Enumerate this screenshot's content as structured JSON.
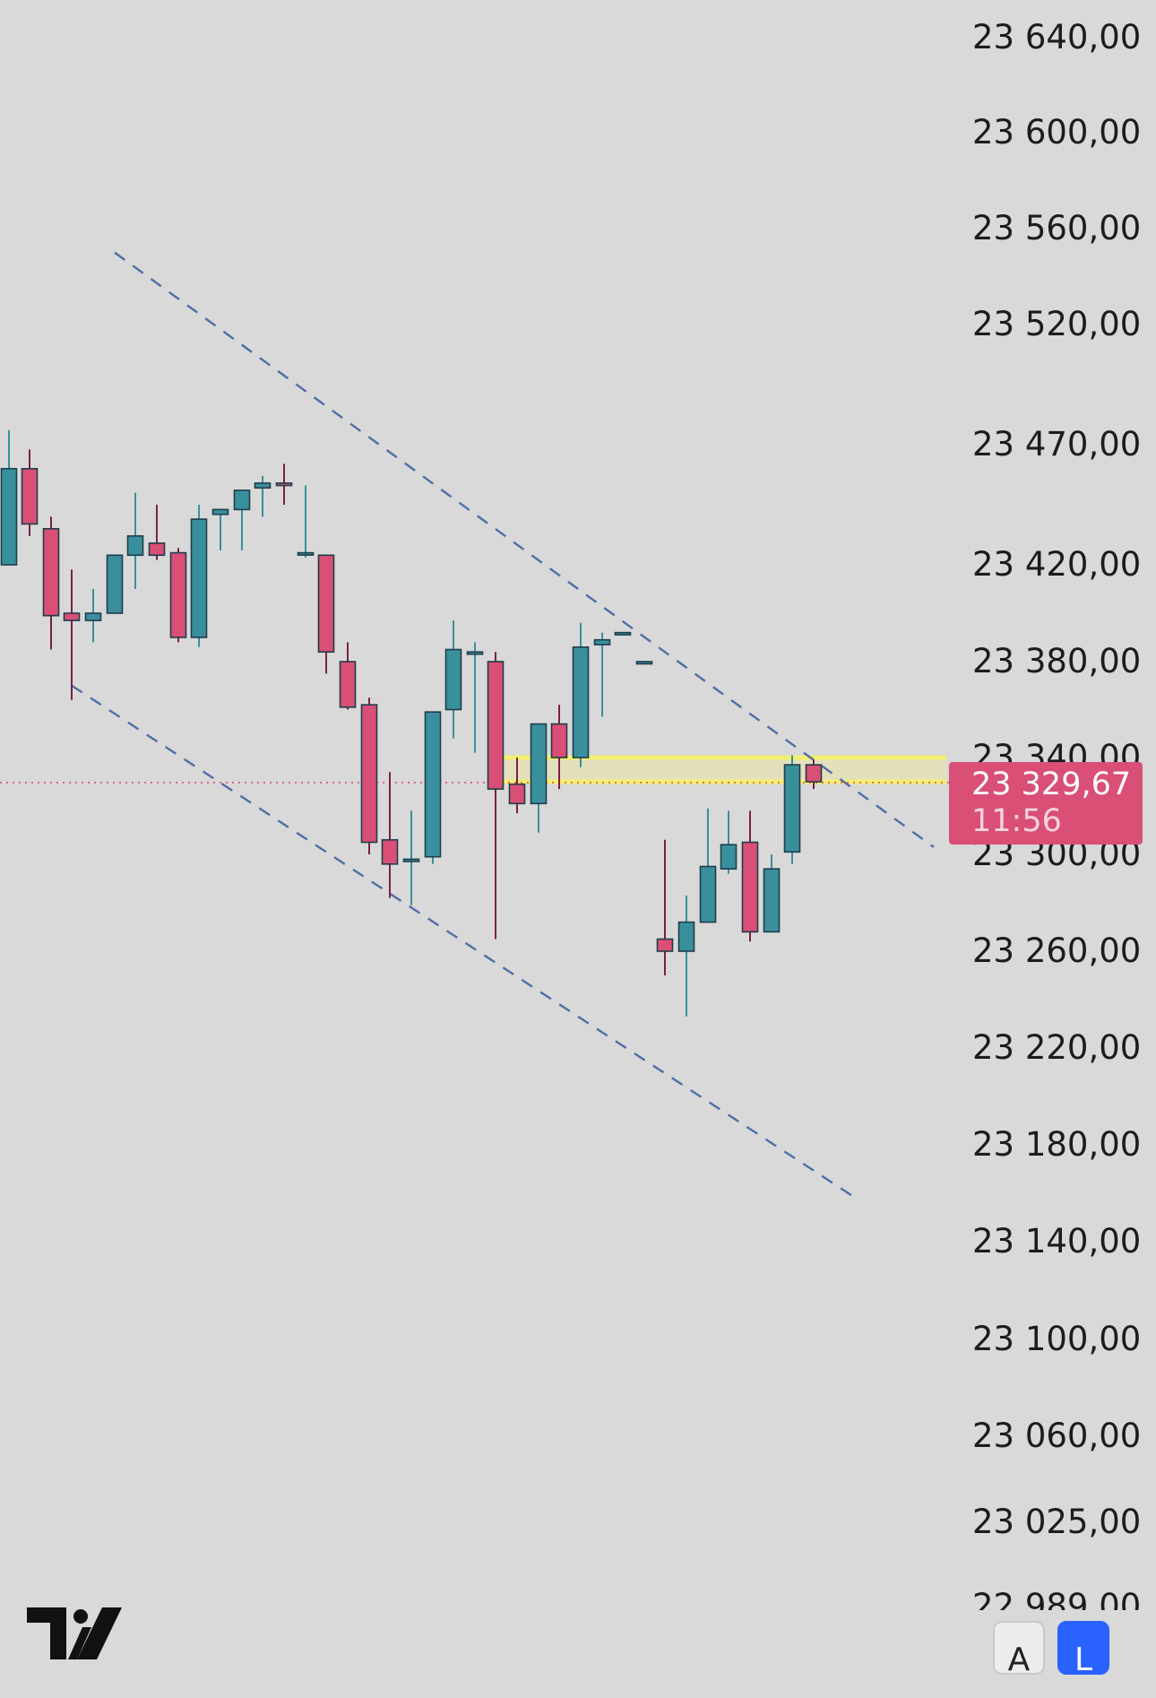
{
  "colors": {
    "background": "#d9d9d9",
    "bullish_body": "#3a8f9d",
    "bullish_wick": "#3a8f9d",
    "bearish_body": "#d94f76",
    "bearish_wick": "#7a1f45",
    "candle_outline": "#1f3d4a",
    "trend_line": "#4f6ea6",
    "zone_fill": "#e4e0b8",
    "zone_border": "#f4ef6e",
    "price_line": "#d94f76",
    "price_tag": "#d94f76",
    "logo": "#111111",
    "active_button": "#2962ff"
  },
  "price_axis": {
    "labels": [
      {
        "value": 23640,
        "text": "23 640,00"
      },
      {
        "value": 23600,
        "text": "23 600,00"
      },
      {
        "value": 23560,
        "text": "23 560,00"
      },
      {
        "value": 23520,
        "text": "23 520,00"
      },
      {
        "value": 23470,
        "text": "23 470,00"
      },
      {
        "value": 23420,
        "text": "23 420,00"
      },
      {
        "value": 23380,
        "text": "23 380,00"
      },
      {
        "value": 23340,
        "text": "23 340,00"
      },
      {
        "value": 23300,
        "text": "23 300,00"
      },
      {
        "value": 23260,
        "text": "23 260,00"
      },
      {
        "value": 23220,
        "text": "23 220,00"
      },
      {
        "value": 23180,
        "text": "23 180,00"
      },
      {
        "value": 23140,
        "text": "23 140,00"
      },
      {
        "value": 23100,
        "text": "23 100,00"
      },
      {
        "value": 23060,
        "text": "23 060,00"
      },
      {
        "value": 23025,
        "text": "23 025,00"
      },
      {
        "value": 22989,
        "text": "22 989,00"
      }
    ]
  },
  "current_price": {
    "value": 23329.67,
    "label": "23 329,67",
    "countdown": "11:56"
  },
  "buttons": {
    "auto_label": "A",
    "log_label": "L"
  },
  "chart_data": {
    "type": "candlestick",
    "title": "",
    "xlabel": "",
    "ylabel": "",
    "ylim": [
      22989,
      23655
    ],
    "candles": [
      {
        "open": 23420,
        "high": 23476,
        "low": 23420,
        "close": 23460
      },
      {
        "open": 23460,
        "high": 23468,
        "low": 23432,
        "close": 23437
      },
      {
        "open": 23435,
        "high": 23440,
        "low": 23385,
        "close": 23399
      },
      {
        "open": 23400,
        "high": 23418,
        "low": 23364,
        "close": 23397
      },
      {
        "open": 23397,
        "high": 23410,
        "low": 23388,
        "close": 23400
      },
      {
        "open": 23400,
        "high": 23418,
        "low": 23400,
        "close": 23424
      },
      {
        "open": 23424,
        "high": 23450,
        "low": 23410,
        "close": 23432
      },
      {
        "open": 23429,
        "high": 23445,
        "low": 23422,
        "close": 23424
      },
      {
        "open": 23425,
        "high": 23427,
        "low": 23388,
        "close": 23390
      },
      {
        "open": 23390,
        "high": 23445,
        "low": 23386,
        "close": 23439
      },
      {
        "open": 23441,
        "high": 23443,
        "low": 23426,
        "close": 23443
      },
      {
        "open": 23443,
        "high": 23445,
        "low": 23426,
        "close": 23451
      },
      {
        "open": 23452,
        "high": 23457,
        "low": 23440,
        "close": 23454
      },
      {
        "open": 23454,
        "high": 23462,
        "low": 23445,
        "close": 23453
      },
      {
        "open": 23425,
        "high": 23453,
        "low": 23423,
        "close": 23425
      },
      {
        "open": 23424,
        "high": 23420,
        "low": 23375,
        "close": 23384
      },
      {
        "open": 23380,
        "high": 23388,
        "low": 23360,
        "close": 23361
      },
      {
        "open": 23362,
        "high": 23365,
        "low": 23300,
        "close": 23305
      },
      {
        "open": 23306,
        "high": 23334,
        "low": 23282,
        "close": 23296
      },
      {
        "open": 23298,
        "high": 23318,
        "low": 23279,
        "close": 23298
      },
      {
        "open": 23299,
        "high": 23359,
        "low": 23296,
        "close": 23359
      },
      {
        "open": 23360,
        "high": 23397,
        "low": 23348,
        "close": 23385
      },
      {
        "open": 23384,
        "high": 23388,
        "low": 23342,
        "close": 23384
      },
      {
        "open": 23380,
        "high": 23384,
        "low": 23265,
        "close": 23327
      },
      {
        "open": 23329,
        "high": 23340,
        "low": 23317,
        "close": 23321
      },
      {
        "open": 23321,
        "high": 23354,
        "low": 23309,
        "close": 23354
      },
      {
        "open": 23354,
        "high": 23362,
        "low": 23327,
        "close": 23340
      },
      {
        "open": 23340,
        "high": 23396,
        "low": 23336,
        "close": 23386
      },
      {
        "open": 23387,
        "high": 23392,
        "low": 23357,
        "close": 23389
      },
      {
        "open": 23392,
        "high": 23392,
        "low": 23392,
        "close": 23392
      },
      {
        "open": 23380,
        "high": 23380,
        "low": 23380,
        "close": 23380
      },
      {
        "open": 23265,
        "high": 23306,
        "low": 23250,
        "close": 23260
      },
      {
        "open": 23260,
        "high": 23283,
        "low": 23233,
        "close": 23272
      },
      {
        "open": 23272,
        "high": 23319,
        "low": 23272,
        "close": 23295
      },
      {
        "open": 23294,
        "high": 23318,
        "low": 23292,
        "close": 23304
      },
      {
        "open": 23305,
        "high": 23318,
        "low": 23264,
        "close": 23268
      },
      {
        "open": 23268,
        "high": 23300,
        "low": 23268,
        "close": 23294
      },
      {
        "open": 23301,
        "high": 23341,
        "low": 23296,
        "close": 23337
      },
      {
        "open": 23337,
        "high": 23339,
        "low": 23327,
        "close": 23330
      }
    ],
    "overlays": {
      "upper_trend_line": {
        "from": 23550,
        "to": 23303,
        "style": "dashed"
      },
      "lower_trend_line": {
        "from": 23370,
        "to": 23158,
        "style": "dashed"
      },
      "highlight_zone": {
        "top": 23340,
        "bottom": 23330
      },
      "current_price_line": 23329.67
    }
  }
}
